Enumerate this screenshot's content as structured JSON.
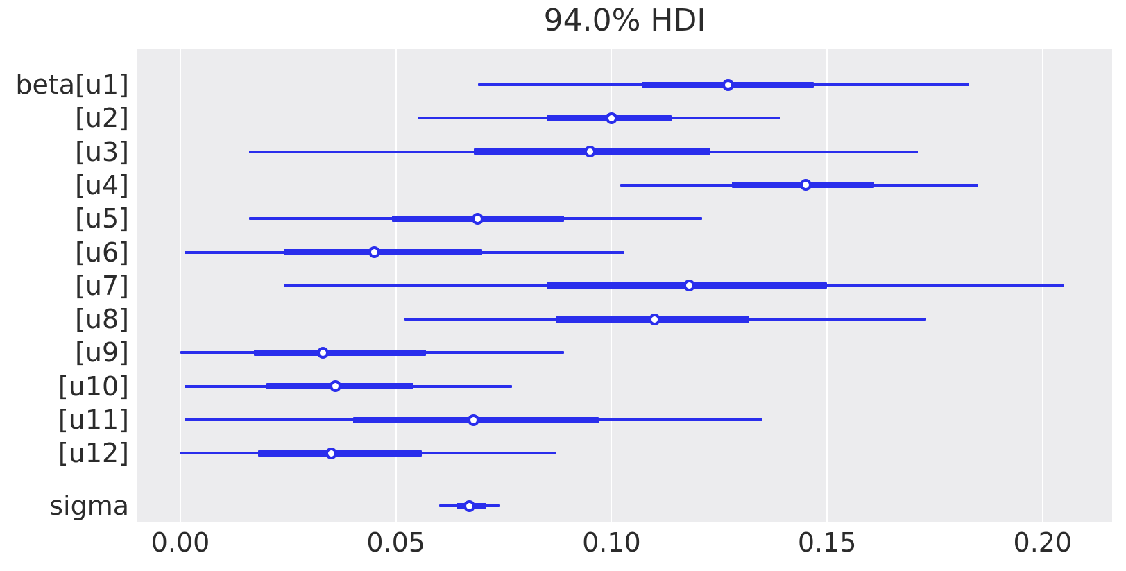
{
  "chart_data": {
    "type": "forest",
    "title": "94.0% HDI",
    "xlabel": "",
    "ylabel": "",
    "xlim": [
      -0.00998,
      0.21612
    ],
    "grid": true,
    "legend": false,
    "x_ticks": [
      0.0,
      0.05,
      0.1,
      0.15,
      0.2
    ],
    "x_tick_labels": [
      "0.00",
      "0.05",
      "0.10",
      "0.15",
      "0.20"
    ],
    "rows": [
      {
        "label": "beta[u1]",
        "hdi_low": 0.069,
        "q25": 0.107,
        "median": 0.127,
        "q75": 0.147,
        "hdi_high": 0.183
      },
      {
        "label": "[u2]",
        "hdi_low": 0.055,
        "q25": 0.085,
        "median": 0.1,
        "q75": 0.114,
        "hdi_high": 0.139
      },
      {
        "label": "[u3]",
        "hdi_low": 0.016,
        "q25": 0.068,
        "median": 0.095,
        "q75": 0.123,
        "hdi_high": 0.171
      },
      {
        "label": "[u4]",
        "hdi_low": 0.102,
        "q25": 0.128,
        "median": 0.145,
        "q75": 0.161,
        "hdi_high": 0.185
      },
      {
        "label": "[u5]",
        "hdi_low": 0.016,
        "q25": 0.049,
        "median": 0.069,
        "q75": 0.089,
        "hdi_high": 0.121
      },
      {
        "label": "[u6]",
        "hdi_low": 0.001,
        "q25": 0.024,
        "median": 0.045,
        "q75": 0.07,
        "hdi_high": 0.103
      },
      {
        "label": "[u7]",
        "hdi_low": 0.024,
        "q25": 0.085,
        "median": 0.118,
        "q75": 0.15,
        "hdi_high": 0.205
      },
      {
        "label": "[u8]",
        "hdi_low": 0.052,
        "q25": 0.087,
        "median": 0.11,
        "q75": 0.132,
        "hdi_high": 0.173
      },
      {
        "label": "[u9]",
        "hdi_low": 0.0,
        "q25": 0.017,
        "median": 0.033,
        "q75": 0.057,
        "hdi_high": 0.089
      },
      {
        "label": "[u10]",
        "hdi_low": 0.001,
        "q25": 0.02,
        "median": 0.036,
        "q75": 0.054,
        "hdi_high": 0.077
      },
      {
        "label": "[u11]",
        "hdi_low": 0.001,
        "q25": 0.04,
        "median": 0.068,
        "q75": 0.097,
        "hdi_high": 0.135
      },
      {
        "label": "[u12]",
        "hdi_low": 0.0,
        "q25": 0.018,
        "median": 0.035,
        "q75": 0.056,
        "hdi_high": 0.087
      },
      {
        "label": "sigma",
        "hdi_low": 0.06,
        "q25": 0.064,
        "median": 0.067,
        "q75": 0.071,
        "hdi_high": 0.074
      }
    ],
    "colors": {
      "interval": "#2a2eec",
      "marker_face": "#ffffff",
      "plot_background": "#ececee",
      "gridline": "#ffffff",
      "text": "#2b2b2b"
    }
  }
}
